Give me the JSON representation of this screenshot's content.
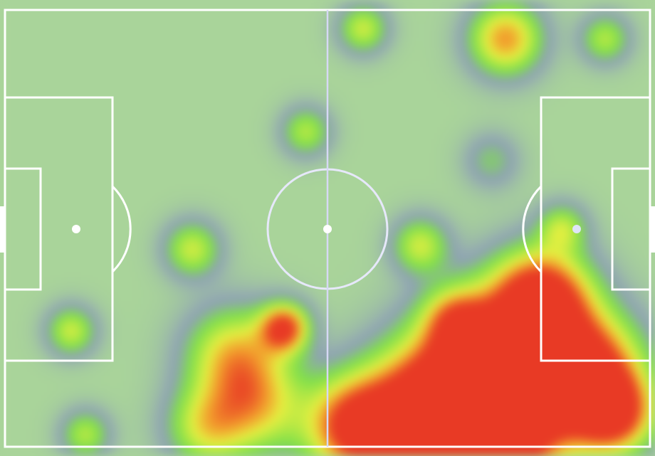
{
  "chart_data": {
    "type": "heatmap",
    "title": "",
    "pitch": {
      "length_m": 105,
      "width_m": 68,
      "background_color": "#a9d49a",
      "line_color": "#ffffff",
      "halfway_line_color": "#d6d8f5"
    },
    "colorscale": [
      {
        "level": 0.0,
        "color": "#a9d49a"
      },
      {
        "level": 0.12,
        "color": "#8fa2b5"
      },
      {
        "level": 0.25,
        "color": "#7fe04a"
      },
      {
        "level": 0.45,
        "color": "#e6f040"
      },
      {
        "level": 0.6,
        "color": "#f39a2c"
      },
      {
        "level": 0.75,
        "color": "#e83a25"
      }
    ],
    "hotspots": [
      {
        "x": 80.3,
        "y": 56.0,
        "intensity": 1.0,
        "spread": 10.4
      },
      {
        "x": 87.3,
        "y": 44.9,
        "intensity": 0.9,
        "spread": 7
      },
      {
        "x": 94.2,
        "y": 56.0,
        "intensity": 0.9,
        "spread": 8
      },
      {
        "x": 68.7,
        "y": 62.7,
        "intensity": 0.9,
        "spread": 9.3
      },
      {
        "x": 57.1,
        "y": 64.9,
        "intensity": 0.8,
        "spread": 7
      },
      {
        "x": 98.9,
        "y": 62.7,
        "intensity": 0.8,
        "spread": 5.8
      },
      {
        "x": 80.3,
        "y": 64.9,
        "intensity": 0.9,
        "spread": 9.3
      },
      {
        "x": 45.5,
        "y": 49.4,
        "intensity": 0.75,
        "spread": 3.5
      },
      {
        "x": 37.4,
        "y": 53.8,
        "intensity": 0.5,
        "spread": 7
      },
      {
        "x": 40.9,
        "y": 61.5,
        "intensity": 0.45,
        "spread": 7
      },
      {
        "x": 32.8,
        "y": 64.9,
        "intensity": 0.4,
        "spread": 5.8
      },
      {
        "x": 81.5,
        "y": 4.5,
        "intensity": 0.6,
        "spread": 5.2
      },
      {
        "x": 58.3,
        "y": 2.9,
        "intensity": 0.4,
        "spread": 3.5
      },
      {
        "x": 97.7,
        "y": 4.5,
        "intensity": 0.35,
        "spread": 3.5
      },
      {
        "x": 49.0,
        "y": 18.9,
        "intensity": 0.35,
        "spread": 3.5
      },
      {
        "x": 30.5,
        "y": 37.2,
        "intensity": 0.4,
        "spread": 4
      },
      {
        "x": 67.6,
        "y": 36.6,
        "intensity": 0.4,
        "spread": 4
      },
      {
        "x": 10.8,
        "y": 49.9,
        "intensity": 0.4,
        "spread": 3.5
      },
      {
        "x": 13.1,
        "y": 66.0,
        "intensity": 0.35,
        "spread": 3.5
      },
      {
        "x": 90.7,
        "y": 33.9,
        "intensity": 0.35,
        "spread": 3.5
      },
      {
        "x": 73.4,
        "y": 48.3,
        "intensity": 0.45,
        "spread": 4.6
      },
      {
        "x": 79.2,
        "y": 23.4,
        "intensity": 0.2,
        "spread": 4
      }
    ]
  }
}
